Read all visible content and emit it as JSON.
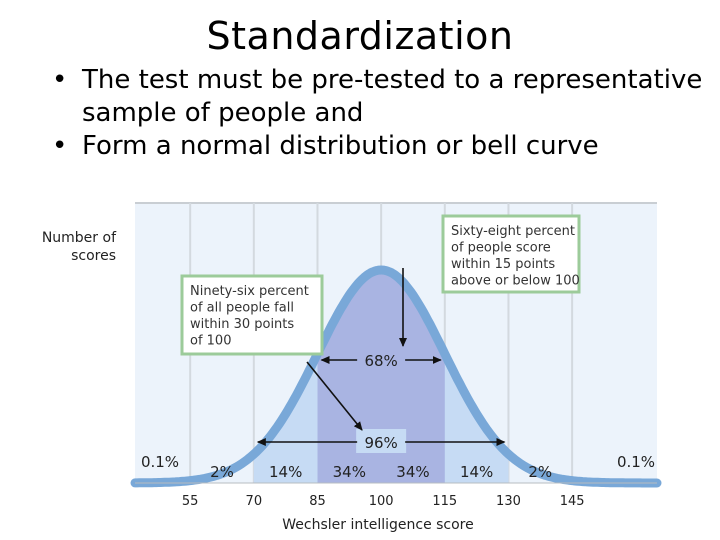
{
  "slide": {
    "title": "Standardization",
    "bullets": [
      {
        "marker": "•",
        "text": "The test must be pre-tested to a representative sample of people and"
      },
      {
        "marker": "•",
        "text": "Form a normal distribution or bell curve"
      }
    ]
  },
  "colors": {
    "curve": "#79a8d8",
    "band_inner": "#a9b4e2",
    "band_outer": "#c6dbf4",
    "plot_bg": "#ecf3fb",
    "grid": "#d3d9df",
    "callout_border": "#9ccb9a",
    "arrow": "#111111"
  },
  "chart_data": {
    "type": "area",
    "xlabel": "Wechsler intelligence score",
    "ylabel": "Number of scores",
    "xticks": [
      55,
      70,
      85,
      100,
      115,
      130,
      145
    ],
    "xlim": [
      42,
      165
    ],
    "mean": 100,
    "sd": 15,
    "percent_labels": [
      {
        "x": 46,
        "text": "0.1%"
      },
      {
        "x": 62.5,
        "text": "2%"
      },
      {
        "x": 77.5,
        "text": "14%"
      },
      {
        "x": 92.5,
        "text": "34%"
      },
      {
        "x": 107.5,
        "text": "34%"
      },
      {
        "x": 122.5,
        "text": "14%"
      },
      {
        "x": 137.5,
        "text": "2%"
      },
      {
        "x": 154,
        "text": "0.1%"
      }
    ],
    "range_bands": [
      {
        "label": "68%",
        "from": 85,
        "to": 115
      },
      {
        "label": "96%",
        "from": 70,
        "to": 130
      }
    ],
    "annotations": [
      "Ninety-six percent of all people fall within 30 points of 100",
      "Sixty-eight percent of people score within 15 points above or below 100"
    ]
  },
  "chart_text": {
    "ylabel_lines": [
      "Number of",
      "scores"
    ],
    "note96_lines": [
      "Ninety-six percent",
      "of all people fall",
      "within 30 points",
      "of 100"
    ],
    "note68_lines": [
      "Sixty-eight percent",
      "of people score",
      "within 15 points",
      "above or below 100"
    ]
  }
}
